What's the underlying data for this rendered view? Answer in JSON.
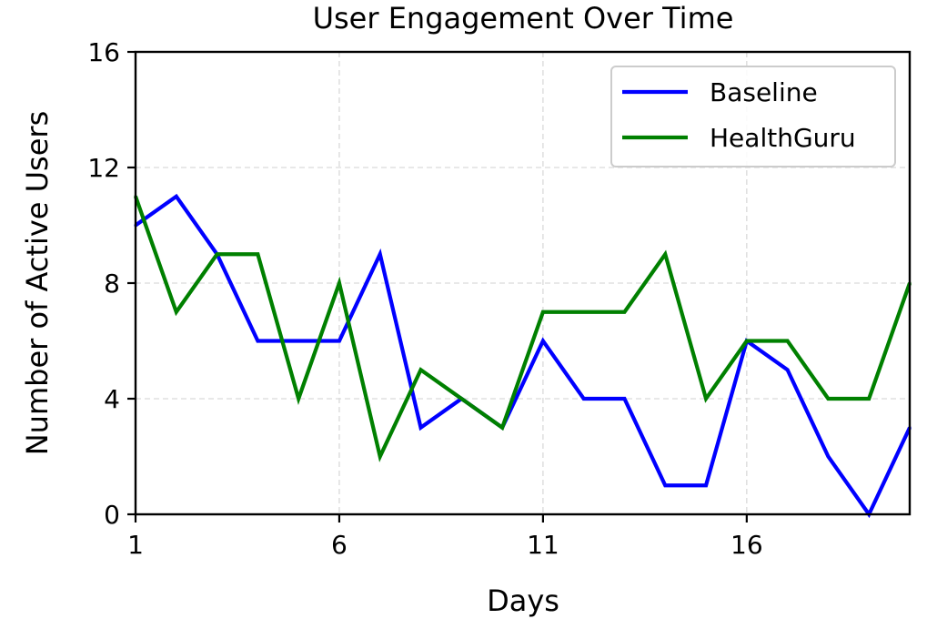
{
  "chart_data": {
    "type": "line",
    "title": "User Engagement Over Time",
    "xlabel": "Days",
    "ylabel": "Number of Active Users",
    "x": [
      1,
      2,
      3,
      4,
      5,
      6,
      7,
      8,
      9,
      10,
      11,
      12,
      13,
      14,
      15,
      16,
      17,
      18,
      19,
      20
    ],
    "xlim": [
      1,
      20
    ],
    "ylim": [
      0,
      16
    ],
    "xticks": [
      1,
      6,
      11,
      16
    ],
    "yticks": [
      0,
      4,
      8,
      12,
      16
    ],
    "grid": true,
    "legend_position": "top-right",
    "series": [
      {
        "name": "Baseline",
        "color": "#0000ff",
        "values": [
          10,
          11,
          9,
          6,
          6,
          6,
          9,
          3,
          4,
          3,
          6,
          4,
          4,
          1,
          1,
          6,
          5,
          2,
          0,
          3
        ]
      },
      {
        "name": "HealthGuru",
        "color": "#008000",
        "values": [
          11,
          7,
          9,
          9,
          4,
          8,
          2,
          5,
          4,
          3,
          7,
          7,
          7,
          9,
          4,
          6,
          6,
          4,
          4,
          8
        ]
      }
    ]
  }
}
